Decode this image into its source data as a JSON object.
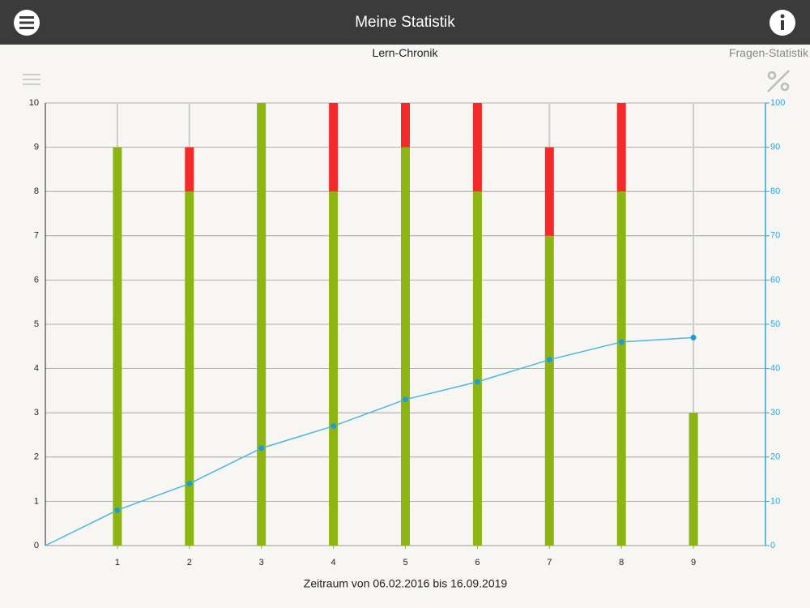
{
  "app_bar": {
    "title": "Meine Statistik"
  },
  "tabs": {
    "active": "Lern-Chronik",
    "other": "Fragen-Statistik"
  },
  "chart_data": {
    "type": "bar",
    "stacked": true,
    "x_label": "Zeitraum von 06.02.2016 bis 16.09.2019",
    "x": [
      1,
      2,
      3,
      4,
      5,
      6,
      7,
      8,
      9
    ],
    "xlim": [
      0,
      10
    ],
    "xticks": [
      1,
      2,
      3,
      4,
      5,
      6,
      7,
      8,
      9
    ],
    "ylim": [
      0,
      10
    ],
    "yticks": [
      0,
      1,
      2,
      3,
      4,
      5,
      6,
      7,
      8,
      9,
      10
    ],
    "y2lim": [
      0,
      100
    ],
    "y2ticks": [
      0,
      10,
      20,
      30,
      40,
      50,
      60,
      70,
      80,
      90,
      100
    ],
    "y2_color": "#2aa7dd",
    "grid": true,
    "series": [
      {
        "color": "#8db512",
        "values": [
          9,
          8,
          10,
          8,
          9,
          8,
          7,
          8,
          3
        ]
      },
      {
        "color": "#f42a2a",
        "values": [
          0,
          1,
          0,
          2,
          1,
          2,
          2,
          2,
          0
        ]
      },
      {
        "type": "line",
        "axis": "y2",
        "color": "#4bb8e2",
        "x": [
          0,
          1,
          2,
          3,
          4,
          5,
          6,
          7,
          8,
          9
        ],
        "values": [
          0,
          8,
          14,
          22,
          27,
          33,
          37,
          42,
          46,
          47
        ]
      }
    ]
  }
}
